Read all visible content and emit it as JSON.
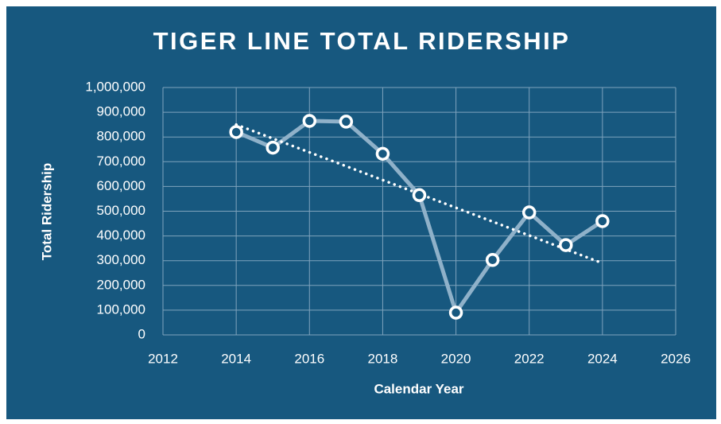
{
  "chart_data": {
    "type": "line",
    "title": "TIGER LINE TOTAL RIDERSHIP",
    "x_label": "Calendar Year",
    "y_label": "Total Ridership",
    "x": [
      2014,
      2015,
      2016,
      2017,
      2018,
      2019,
      2020,
      2021,
      2022,
      2023,
      2024
    ],
    "series": [
      {
        "color": "#8fb1c9",
        "values": [
          820000,
          757000,
          865000,
          862000,
          732000,
          565000,
          90000,
          303000,
          495000,
          363000,
          460000
        ]
      }
    ],
    "trendline": {
      "x": [
        2014,
        2024
      ],
      "values": [
        850000,
        290000
      ],
      "color": "#ffffff"
    },
    "xlim": [
      2012,
      2026
    ],
    "xticks": [
      2012,
      2014,
      2016,
      2018,
      2020,
      2022,
      2024,
      2026
    ],
    "ylim": [
      0,
      1000000
    ],
    "yticks": [
      0,
      {
        "value": 100000,
        "label": "100,000"
      },
      {
        "value": 200000,
        "label": "200,000"
      },
      {
        "value": 300000,
        "label": "300,000"
      },
      {
        "value": 400000,
        "label": "400,000"
      },
      {
        "value": 500000,
        "label": "500,000"
      },
      {
        "value": 600000,
        "label": "600,000"
      },
      {
        "value": 700000,
        "label": "700,000"
      },
      {
        "value": 800000,
        "label": "800,000"
      },
      {
        "value": 900000,
        "label": "900,000"
      },
      {
        "value": 1000000,
        "label": "1,000,000"
      }
    ],
    "grid": true
  }
}
